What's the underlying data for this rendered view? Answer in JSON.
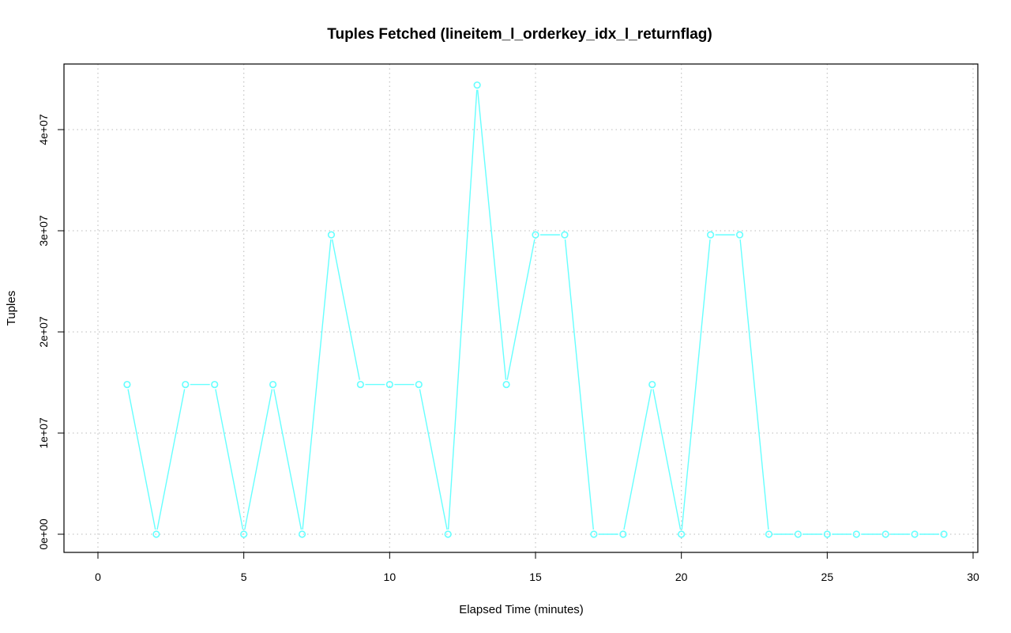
{
  "chart_data": {
    "type": "line",
    "title": "Tuples Fetched (lineitem_l_orderkey_idx_l_returnflag)",
    "xlabel": "Elapsed Time (minutes)",
    "ylabel": "Tuples",
    "xlim": [
      0,
      30
    ],
    "ylim": [
      0,
      45000000
    ],
    "x_ticks": [
      0,
      5,
      10,
      15,
      20,
      25,
      30
    ],
    "x_tick_labels": [
      "0",
      "5",
      "10",
      "15",
      "20",
      "25",
      "30"
    ],
    "y_ticks": [
      0,
      10000000,
      20000000,
      30000000,
      40000000
    ],
    "y_tick_labels": [
      "0e+00",
      "1e+07",
      "2e+07",
      "3e+07",
      "4e+07"
    ],
    "grid": true,
    "series": [
      {
        "color": "#66ffff",
        "marker": "circle",
        "x": [
          1,
          2,
          3,
          4,
          5,
          6,
          7,
          8,
          9,
          10,
          11,
          12,
          13,
          14,
          15,
          16,
          17,
          18,
          19,
          20,
          21,
          22,
          23,
          24,
          25,
          26,
          27,
          28,
          29
        ],
        "y": [
          14800000,
          0,
          14800000,
          14800000,
          0,
          14800000,
          0,
          29600000,
          14800000,
          14800000,
          14800000,
          0,
          44400000,
          14800000,
          29600000,
          29600000,
          0,
          0,
          14800000,
          0,
          29600000,
          29600000,
          0,
          0,
          0,
          0,
          0,
          0,
          0
        ]
      }
    ]
  }
}
